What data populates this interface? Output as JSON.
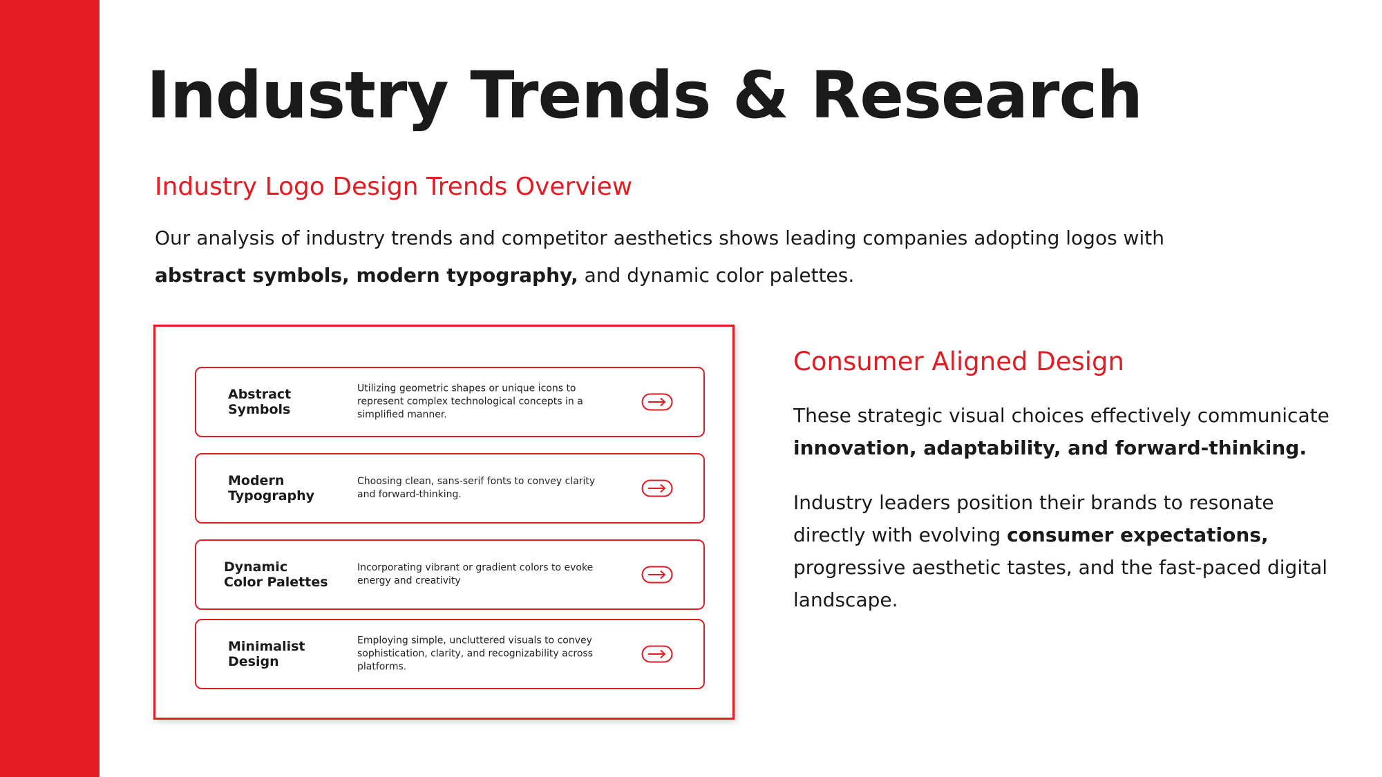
{
  "slide": {
    "title": "Industry Trends & Research",
    "overview": {
      "heading": "Industry Logo Design Trends Overview",
      "intro_before": "Our analysis of industry trends and competitor aesthetics shows leading companies adopting logos with ",
      "intro_bold": "abstract symbols, modern typography,",
      "intro_after": " and dynamic color palettes."
    },
    "trends": [
      {
        "name": "Abstract\nSymbols",
        "description": "Utilizing geometric shapes or unique icons to represent complex technological concepts in a simplified manner.",
        "icon": "arrow-right-icon"
      },
      {
        "name": "Modern\nTypography",
        "description": "Choosing clean, sans-serif fonts to convey clarity and forward-thinking.",
        "icon": "arrow-right-icon"
      },
      {
        "name": "Dynamic\nColor Palettes",
        "description": "Incorporating vibrant or gradient colors to evoke energy and creativity",
        "icon": "arrow-right-icon"
      },
      {
        "name": "Minimalist\nDesign",
        "description": "Employing simple, uncluttered visuals to convey sophistication, clarity, and recognizability across platforms.",
        "icon": "arrow-right-icon"
      }
    ],
    "consumer": {
      "heading": "Consumer Aligned Design",
      "p1_before": "These strategic visual choices effectively  communicate ",
      "p1_bold": "innovation, adaptability, and forward-thinking.",
      "p2_before": "Industry leaders position their brands to resonate directly with evolving ",
      "p2_bold": "consumer expectations,",
      "p2_after": " progressive aesthetic tastes, and the fast-paced digital landscape."
    },
    "colors": {
      "accent": "#e31b23",
      "text": "#1a1a1a",
      "background": "#ffffff"
    }
  }
}
